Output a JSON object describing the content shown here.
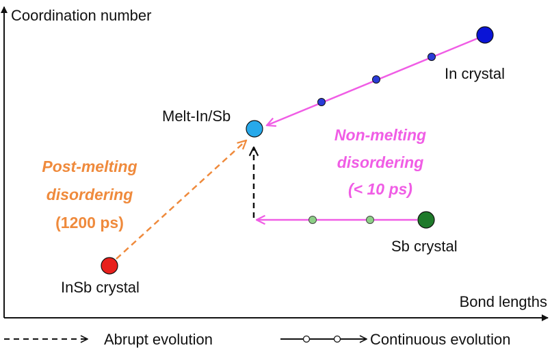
{
  "axes": {
    "y_label": "Coordination number",
    "x_label": "Bond lengths"
  },
  "nodes": {
    "in_crystal": {
      "label": "In crystal",
      "color": "#0a14d6"
    },
    "melt": {
      "label": "Melt-In/Sb",
      "color": "#27a9ea"
    },
    "sb_crystal": {
      "label": "Sb crystal",
      "color": "#1e7a2a"
    },
    "insb_crystal": {
      "label": "InSb crystal",
      "color": "#e8201c"
    }
  },
  "intermediate_points": {
    "in_path_color": "#2a3bd8",
    "sb_path_color": "#8ccf86"
  },
  "annotations": {
    "post_melting": {
      "line1": "Post-melting",
      "line2": "disordering",
      "line3": "(1200 ps)",
      "color": "#ef8a3c"
    },
    "non_melting": {
      "line1": "Non-melting",
      "line2": "disordering",
      "line3": "(< 10 ps)",
      "color": "#f05de5"
    }
  },
  "legend": {
    "abrupt": "Abrupt evolution",
    "continuous": "Continuous evolution"
  },
  "colors": {
    "arrow_pink": "#f05de5",
    "arrow_orange": "#ef8a3c",
    "arrow_black": "#111111"
  }
}
